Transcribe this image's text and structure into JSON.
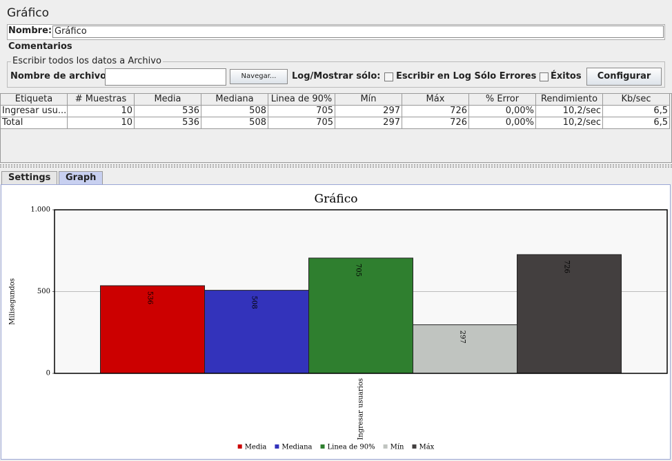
{
  "header": {
    "title": "Gráfico"
  },
  "form": {
    "name_label": "Nombre:",
    "name_value": "Gráfico",
    "comments_label": "Comentarios",
    "file_group_title": "Escribir todos los datos a Archivo",
    "file_label": "Nombre de archivo",
    "browse_button": "Navegar...",
    "log_label": "Log/Mostrar sólo:",
    "errors_checkbox": "Escribir en Log Sólo Errores",
    "success_checkbox": "Éxitos",
    "configure_button": "Configurar"
  },
  "table": {
    "columns": [
      "Etiqueta",
      "# Muestras",
      "Media",
      "Mediana",
      "Linea de 90%",
      "Mín",
      "Máx",
      "% Error",
      "Rendimiento",
      "Kb/sec"
    ],
    "rows": [
      [
        "Ingresar usu...",
        "10",
        "536",
        "508",
        "705",
        "297",
        "726",
        "0,00%",
        "10,2/sec",
        "6,5"
      ],
      [
        "Total",
        "10",
        "536",
        "508",
        "705",
        "297",
        "726",
        "0,00%",
        "10,2/sec",
        "6,5"
      ]
    ]
  },
  "tabs": [
    "Settings",
    "Graph"
  ],
  "chart_data": {
    "type": "bar",
    "title": "Gráfico",
    "y_label": "Milisegundos",
    "categories": [
      "Ingresar usuarios"
    ],
    "series": [
      {
        "name": "Media",
        "color": "#cc0000",
        "values": [
          536
        ]
      },
      {
        "name": "Mediana",
        "color": "#3333bb",
        "values": [
          508
        ]
      },
      {
        "name": "Linea de 90%",
        "color": "#2f7f2f",
        "values": [
          705
        ]
      },
      {
        "name": "Mín",
        "color": "#c0c4c0",
        "values": [
          297
        ]
      },
      {
        "name": "Máx",
        "color": "#433f3f",
        "values": [
          726
        ]
      }
    ],
    "ylim": [
      0,
      1000
    ],
    "yticks": [
      0,
      500,
      {
        "value": 1000,
        "label": "1.000"
      }
    ],
    "grid": true
  }
}
